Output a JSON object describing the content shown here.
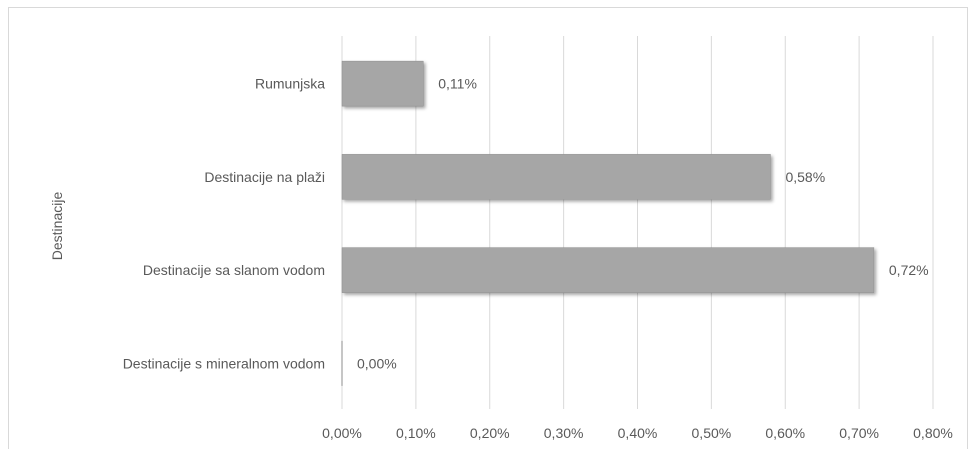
{
  "chart_data": {
    "type": "bar",
    "orientation": "horizontal",
    "categories": [
      "Rumunjska",
      "Destinacije na plaži",
      "Destinacije sa slanom vodom",
      "Destinacije s mineralnom vodom"
    ],
    "values": [
      0.11,
      0.58,
      0.72,
      0.0
    ],
    "data_labels": [
      "0,11%",
      "0,58%",
      "0,72%",
      "0,00%"
    ],
    "ylabel": "Destinacije",
    "xlim": [
      0,
      0.8
    ],
    "x_ticks": [
      0,
      0.1,
      0.2,
      0.3,
      0.4,
      0.5,
      0.6,
      0.7,
      0.8
    ],
    "x_tick_labels": [
      "0,00%",
      "0,10%",
      "0,20%",
      "0,30%",
      "0,40%",
      "0,50%",
      "0,60%",
      "0,70%",
      "0,80%"
    ],
    "grid": true,
    "legend": "none",
    "colors": {
      "bar": "#a6a6a6",
      "bar_edge": "#8c8c8c",
      "grid": "#d9d9d9",
      "text": "#595959"
    }
  }
}
